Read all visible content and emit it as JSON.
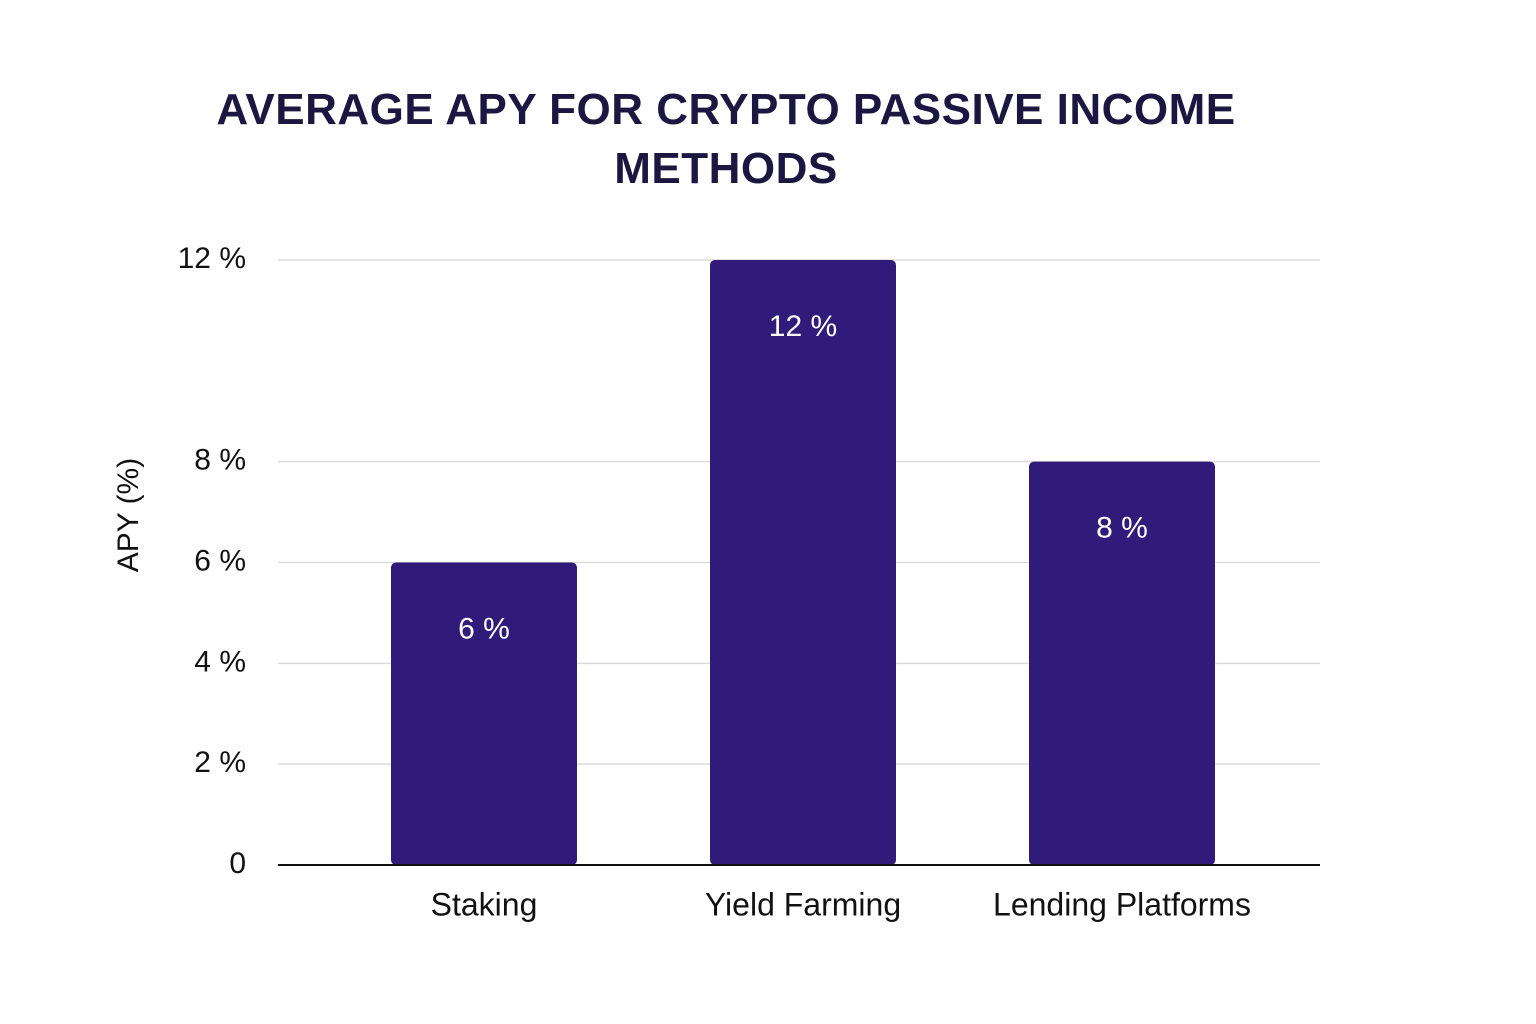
{
  "chart_data": {
    "type": "bar",
    "title": "AVERAGE APY FOR CRYPTO PASSIVE INCOME METHODS",
    "y_label": "APY (%)",
    "categories": [
      "Staking",
      "Yield Farming",
      "Lending Platforms"
    ],
    "values": [
      6,
      12,
      8
    ],
    "value_labels": [
      "6 %",
      "12 %",
      "8 %"
    ],
    "color": "#301b7a",
    "ylim": [
      0,
      12
    ],
    "yticks": [
      0,
      {
        "value": 2,
        "label": "2 %"
      },
      {
        "value": 4,
        "label": "4 %"
      },
      {
        "value": 6,
        "label": "6 %"
      },
      {
        "value": 8,
        "label": "8 %"
      },
      {
        "value": 12,
        "label": "12 %"
      }
    ],
    "grid": true
  }
}
